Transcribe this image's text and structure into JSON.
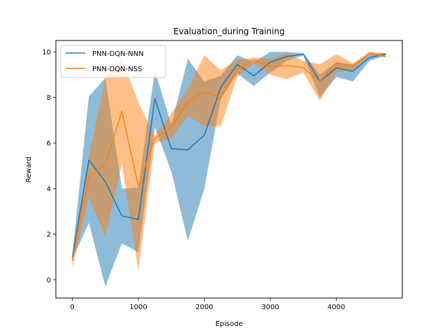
{
  "chart_data": {
    "type": "line",
    "title": "Evaluation_during Training",
    "xlabel": "Episode",
    "ylabel": "Reward",
    "xlim": [
      -250,
      5000
    ],
    "ylim": [
      -0.8,
      10.5
    ],
    "xticks": [
      0,
      1000,
      2000,
      3000,
      4000
    ],
    "yticks": [
      0,
      2,
      4,
      6,
      8,
      10
    ],
    "legend_position": "top-left",
    "grid": false,
    "x": [
      0,
      250,
      500,
      750,
      1000,
      1250,
      1500,
      1750,
      2000,
      2250,
      2500,
      2750,
      3000,
      3250,
      3500,
      3750,
      4000,
      4250,
      4500,
      4750
    ],
    "series": [
      {
        "name": "PNN-DQN-NNN",
        "color": "#1f77b4",
        "band_color": "#1f77b4",
        "values": [
          1.0,
          5.25,
          4.3,
          2.8,
          2.65,
          7.95,
          5.75,
          5.7,
          6.35,
          8.45,
          9.45,
          8.95,
          9.55,
          9.8,
          9.9,
          8.7,
          9.3,
          9.15,
          9.75,
          9.9
        ],
        "upper": [
          1.1,
          8.05,
          8.85,
          4.0,
          4.05,
          9.2,
          6.8,
          9.7,
          8.7,
          8.95,
          9.85,
          9.55,
          10.0,
          10.0,
          9.95,
          9.0,
          9.55,
          9.45,
          9.9,
          9.95
        ],
        "lower": [
          0.9,
          2.5,
          -0.3,
          1.6,
          1.2,
          6.7,
          4.75,
          1.7,
          4.0,
          7.95,
          9.05,
          8.5,
          9.1,
          9.6,
          9.85,
          8.0,
          8.9,
          8.7,
          9.6,
          9.85
        ]
      },
      {
        "name": "PNN-DQN-NSS",
        "color": "#ff7f0e",
        "band_color": "#ff7f0e",
        "values": [
          0.85,
          4.5,
          5.05,
          7.4,
          4.1,
          6.2,
          6.7,
          7.8,
          8.25,
          8.0,
          9.25,
          9.65,
          9.35,
          9.4,
          9.3,
          8.7,
          9.5,
          9.35,
          9.95,
          9.8
        ],
        "upper": [
          1.0,
          5.4,
          8.85,
          9.7,
          7.8,
          6.3,
          7.3,
          8.4,
          9.85,
          9.2,
          9.65,
          9.75,
          9.7,
          9.95,
          9.6,
          9.45,
          9.9,
          9.5,
          10.0,
          9.95
        ],
        "lower": [
          0.55,
          3.6,
          1.9,
          5.1,
          0.4,
          6.0,
          6.2,
          7.2,
          6.75,
          6.75,
          8.9,
          9.5,
          9.0,
          8.8,
          9.1,
          7.85,
          9.1,
          9.2,
          9.85,
          9.75
        ]
      }
    ]
  }
}
